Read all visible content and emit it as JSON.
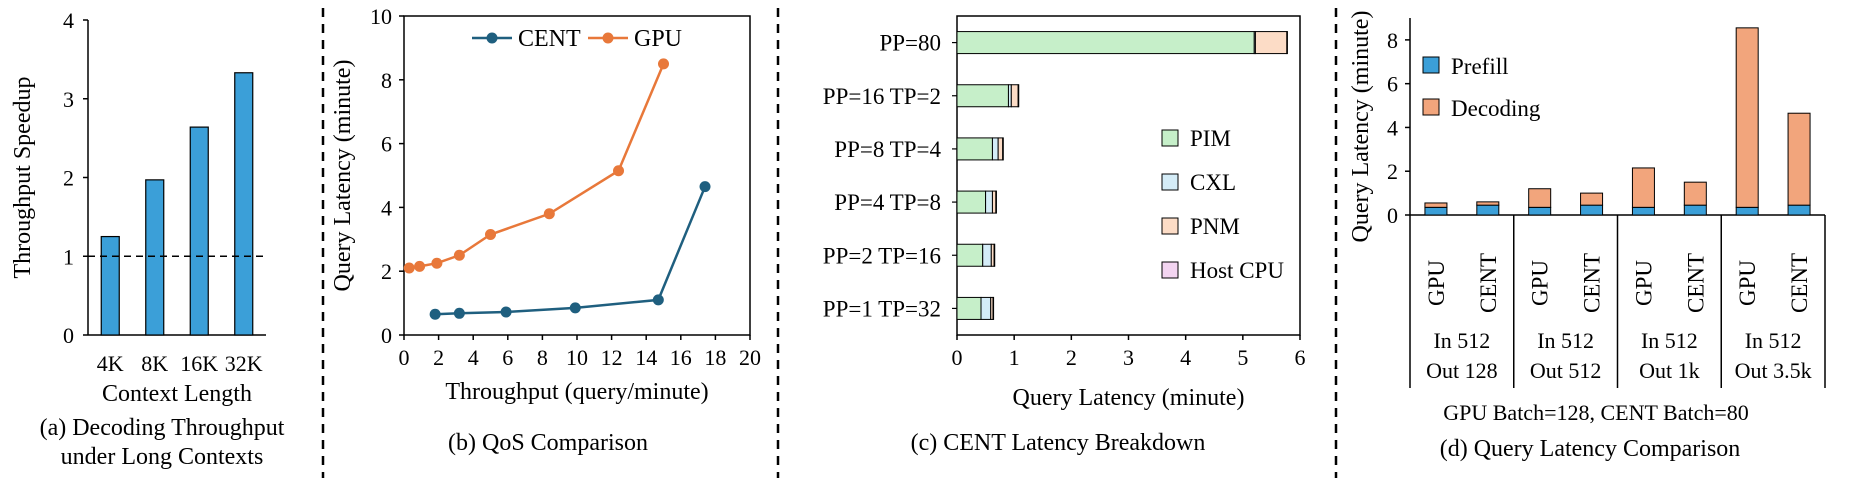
{
  "colors": {
    "blue": "#3b9fd8",
    "navy": "#1f5f7f",
    "orange": "#e8783a",
    "pim": "#c6efc9",
    "cxl": "#d4ecf7",
    "pnm": "#fcdcc6",
    "host": "#f2d4f0",
    "decoding": "#f2a57c"
  },
  "chart_data": [
    {
      "id": "a",
      "type": "bar",
      "caption": "(a) Decoding Throughput under Long Contexts",
      "caption_lines": [
        "(a) Decoding Throughput",
        "under Long Contexts"
      ],
      "categories": [
        "4K",
        "8K",
        "16K",
        "32K"
      ],
      "values": [
        1.25,
        1.97,
        2.64,
        3.33
      ],
      "xlabel": "Context Length",
      "ylabel": "Throughput Speedup",
      "ylim": [
        0,
        4
      ],
      "yticks": [
        "0",
        "1",
        "2",
        "3",
        "4"
      ],
      "reference_line": 1,
      "grid": false
    },
    {
      "id": "b",
      "type": "line",
      "caption": "(b) QoS Comparison",
      "xlabel": "Throughput (query/minute)",
      "ylabel": "Query Latency (minute)",
      "xlim": [
        0,
        20
      ],
      "ylim": [
        0,
        10
      ],
      "xticks": [
        "0",
        "2",
        "4",
        "6",
        "8",
        "10",
        "12",
        "14",
        "16",
        "18",
        "20"
      ],
      "yticks": [
        "0",
        "2",
        "4",
        "6",
        "8",
        "10"
      ],
      "legend_position": "top",
      "series": [
        {
          "name": "CENT",
          "x": [
            1.8,
            3.2,
            5.9,
            9.9,
            14.7,
            17.4
          ],
          "y": [
            0.65,
            0.68,
            0.72,
            0.85,
            1.1,
            4.65
          ]
        },
        {
          "name": "GPU",
          "x": [
            0.3,
            0.9,
            1.9,
            3.2,
            5.0,
            8.4,
            12.4,
            15.0
          ],
          "y": [
            2.1,
            2.15,
            2.25,
            2.5,
            3.15,
            3.8,
            5.15,
            8.5
          ]
        }
      ]
    },
    {
      "id": "c",
      "type": "bar",
      "orientation": "horizontal",
      "stacked": true,
      "caption": "(c) CENT Latency Breakdown",
      "xlabel": "Query Latency (minute)",
      "xlim": [
        0,
        6
      ],
      "xticks": [
        "0",
        "1",
        "2",
        "3",
        "4",
        "5",
        "6"
      ],
      "categories": [
        "PP=80",
        "PP=16 TP=2",
        "PP=8 TP=4",
        "PP=4 TP=8",
        "PP=2 TP=16",
        "PP=1 TP=32"
      ],
      "legend_position": "right",
      "series": [
        {
          "name": "PIM",
          "values": [
            5.2,
            0.9,
            0.62,
            0.5,
            0.45,
            0.42
          ]
        },
        {
          "name": "CXL",
          "values": [
            0.02,
            0.05,
            0.1,
            0.12,
            0.15,
            0.17
          ]
        },
        {
          "name": "PNM",
          "values": [
            0.55,
            0.12,
            0.08,
            0.06,
            0.05,
            0.04
          ]
        },
        {
          "name": "Host CPU",
          "values": [
            0.01,
            0.01,
            0.01,
            0.01,
            0.01,
            0.01
          ]
        }
      ]
    },
    {
      "id": "d",
      "type": "bar",
      "stacked": true,
      "caption": "(d) Query Latency Comparison",
      "ylabel": "Query Latency (minute)",
      "ylim": [
        0,
        9
      ],
      "yticks": [
        "0",
        "2",
        "4",
        "6",
        "8"
      ],
      "legend_position": "top-left",
      "categories": [
        "GPU",
        "CENT",
        "GPU",
        "CENT",
        "GPU",
        "CENT",
        "GPU",
        "CENT"
      ],
      "groups": [
        {
          "in": "In 512",
          "out": "Out 128"
        },
        {
          "in": "In 512",
          "out": "Out 512"
        },
        {
          "in": "In 512",
          "out": "Out 1k"
        },
        {
          "in": "In 512",
          "out": "Out 3.5k"
        }
      ],
      "note": "GPU Batch=128, CENT Batch=80",
      "series": [
        {
          "name": "Prefill",
          "values": [
            0.35,
            0.45,
            0.35,
            0.45,
            0.35,
            0.45,
            0.35,
            0.45
          ]
        },
        {
          "name": "Decoding",
          "values": [
            0.2,
            0.15,
            0.85,
            0.55,
            1.8,
            1.05,
            8.2,
            4.2
          ]
        }
      ]
    }
  ]
}
